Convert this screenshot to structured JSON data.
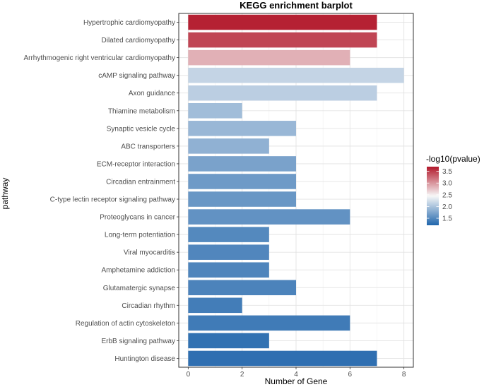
{
  "chart_data": {
    "type": "bar",
    "orientation": "horizontal",
    "title": "KEGG enrichment barplot",
    "xlabel": "Number of Gene",
    "ylabel": "pathway",
    "xlim": [
      -0.35,
      8.35
    ],
    "xticks": [
      0,
      2,
      4,
      6,
      8
    ],
    "grid": true,
    "legend": {
      "title": "-log10(pvalue)",
      "placement": "right",
      "range": [
        1.2,
        3.7
      ],
      "ticks": [
        1.5,
        2.0,
        2.5,
        3.0,
        3.5
      ],
      "tick_labels": [
        "1.5",
        "2.0",
        "2.5",
        "3.0",
        "3.5"
      ],
      "colors": {
        "low": "#2166ac",
        "mid": "#f7f7f7",
        "high": "#b2182b"
      }
    },
    "categories": [
      "Hypertrophic cardiomyopathy",
      "Dilated cardiomyopathy",
      "Arrhythmogenic right ventricular cardiomyopathy",
      "cAMP signaling pathway",
      "Axon guidance",
      "Thiamine metabolism",
      "Synaptic vesicle cycle",
      "ABC transporters",
      "ECM-receptor interaction",
      "Circadian entrainment",
      "C-type lectin receptor signaling pathway",
      "Proteoglycans in cancer",
      "Long-term potentiation",
      "Viral myocarditis",
      "Amphetamine addiction",
      "Glutamatergic synapse",
      "Circadian rhythm",
      "Regulation of actin cytoskeleton",
      "ErbB signaling pathway",
      "Huntington disease"
    ],
    "values": [
      7,
      7,
      6,
      8,
      7,
      2,
      4,
      3,
      4,
      4,
      4,
      6,
      3,
      3,
      3,
      4,
      2,
      6,
      3,
      7
    ],
    "neg_log10_pvalue": [
      3.65,
      3.45,
      2.85,
      2.15,
      2.1,
      1.95,
      1.9,
      1.85,
      1.72,
      1.65,
      1.62,
      1.58,
      1.5,
      1.48,
      1.47,
      1.45,
      1.4,
      1.38,
      1.3,
      1.28
    ]
  }
}
